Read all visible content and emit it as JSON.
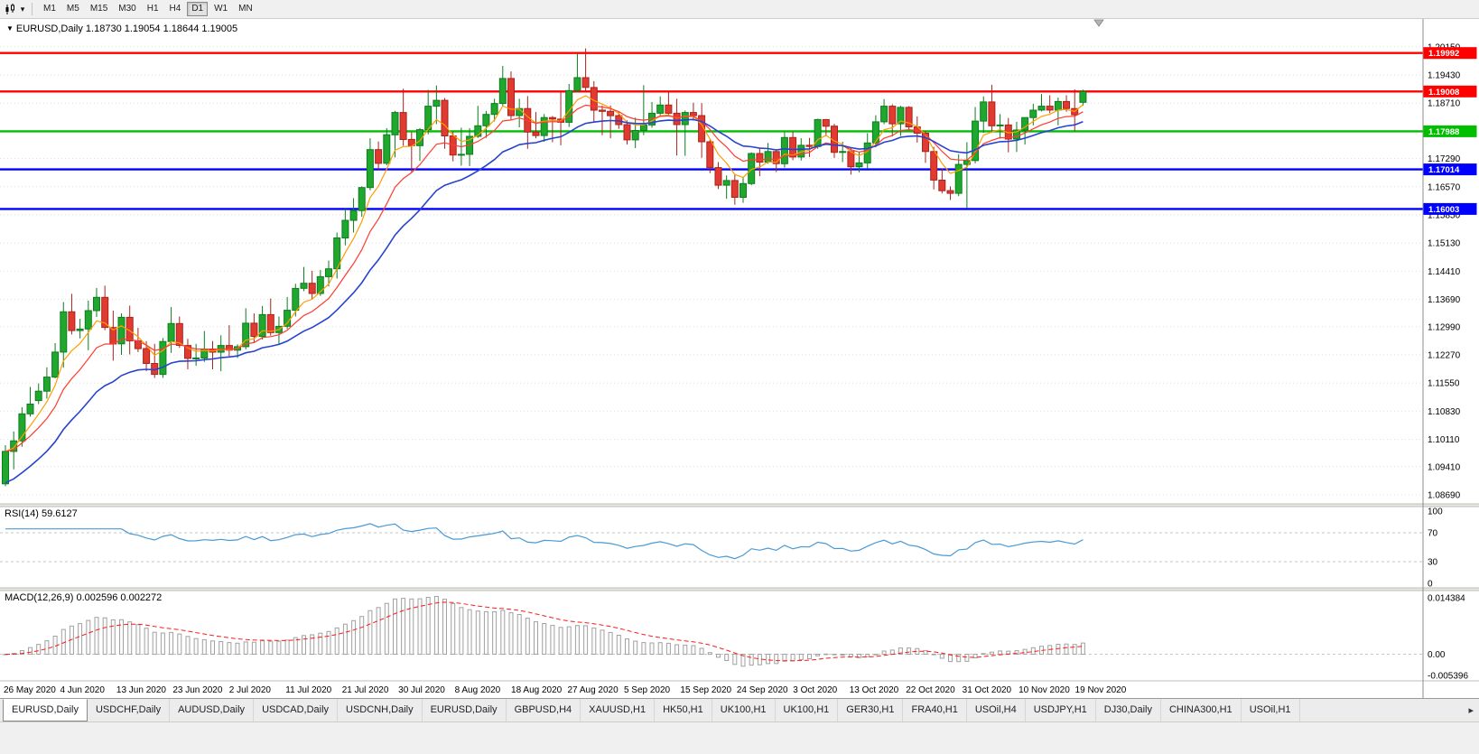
{
  "colors": {
    "bull": "#1fa72e",
    "bull_stroke": "#0d7d1e",
    "bear": "#e03a31",
    "bear_stroke": "#a8231d",
    "ma_fast": "#ff9d00",
    "ma_mid": "#ff3b30",
    "ma_slow": "#2743d0",
    "rsi_line": "#4a9ad4",
    "macd_signal": "#ff1a1a",
    "hist_stroke": "#a2a2a2",
    "hist_fill": "#fbfbfb",
    "grid": "#dcdcdc",
    "axis_line": "#8c8c8c"
  },
  "toolbar": {
    "chart_icon_name": "candlestick-chart-icon",
    "dropdown_glyph": "▾",
    "timeframes": [
      "M1",
      "M5",
      "M15",
      "M30",
      "H1",
      "H4",
      "D1",
      "W1",
      "MN"
    ],
    "active_timeframe": "D1"
  },
  "main_chart": {
    "direction_marker": "▼",
    "title": "EURUSD,Daily 1.18730 1.19054 1.18644 1.19005"
  },
  "rsi_panel": {
    "label": "RSI(14) 59.6127"
  },
  "macd_panel": {
    "label": "MACD(12,26,9) 0.002596 0.002272"
  },
  "chart_data": {
    "type": "candlestick",
    "symbol": "EURUSD",
    "period": "Daily",
    "ohlc_current": {
      "open": "1.18730",
      "high": "1.19054",
      "low": "1.18644",
      "close": "1.19005"
    },
    "x_tick_labels": [
      "26 May 2020",
      "4 Jun 2020",
      "13 Jun 2020",
      "23 Jun 2020",
      "2 Jul 2020",
      "11 Jul 2020",
      "21 Jul 2020",
      "30 Jul 2020",
      "8 Aug 2020",
      "18 Aug 2020",
      "27 Aug 2020",
      "5 Sep 2020",
      "15 Sep 2020",
      "24 Sep 2020",
      "3 Oct 2020",
      "13 Oct 2020",
      "22 Oct 2020",
      "31 Oct 2020",
      "10 Nov 2020",
      "19 Nov 2020"
    ],
    "y_tick_labels": [
      "1.20150",
      "1.19430",
      "1.18710",
      "1.17990",
      "1.17290",
      "1.16570",
      "1.15850",
      "1.15130",
      "1.14410",
      "1.13690",
      "1.12990",
      "1.12270",
      "1.11550",
      "1.10830",
      "1.10110",
      "1.09410",
      "1.08690"
    ],
    "horizontal_lines": [
      {
        "price": 1.19992,
        "label": "1.19992",
        "color": "#FF0000"
      },
      {
        "price": 1.19008,
        "label": "1.19008",
        "color": "#FF0000"
      },
      {
        "price": 1.17988,
        "label": "1.17988",
        "color": "#00BE00"
      },
      {
        "price": 1.17014,
        "label": "1.17014",
        "color": "#0000FF"
      },
      {
        "price": 1.16003,
        "label": "1.16003",
        "color": "#0000FF"
      }
    ],
    "indicators": {
      "moving_averages": [
        {
          "type": "ema",
          "period": 5,
          "color_key": "ma_fast"
        },
        {
          "type": "ema",
          "period": 10,
          "color_key": "ma_mid"
        },
        {
          "type": "ema",
          "period": 20,
          "color_key": "ma_slow"
        }
      ],
      "rsi": {
        "period": 14,
        "value_display": "59.6127",
        "axis_labels": [
          "100",
          "70",
          "30",
          "0"
        ],
        "dashed_levels": [
          70,
          30
        ]
      },
      "macd": {
        "fast": 12,
        "slow": 26,
        "signal": 9,
        "values_display": "0.002596 0.002272",
        "axis_labels": [
          "0.014384",
          "0.00",
          "-0.005396"
        ],
        "axis_top_value": 0.014384,
        "axis_bottom_value": -0.005396
      }
    },
    "candles": [
      [
        1.0897,
        1.0996,
        1.0891,
        1.098
      ],
      [
        1.098,
        1.1031,
        1.0934,
        1.1007
      ],
      [
        1.1007,
        1.1093,
        1.0992,
        1.1076
      ],
      [
        1.1076,
        1.1145,
        1.1069,
        1.1101
      ],
      [
        1.111,
        1.1154,
        1.1101,
        1.1134
      ],
      [
        1.1134,
        1.1195,
        1.1115,
        1.117
      ],
      [
        1.117,
        1.1257,
        1.1167,
        1.1234
      ],
      [
        1.1234,
        1.1362,
        1.1194,
        1.1337
      ],
      [
        1.1337,
        1.1383,
        1.1279,
        1.1289
      ],
      [
        1.1289,
        1.1319,
        1.1269,
        1.1293
      ],
      [
        1.1293,
        1.1366,
        1.1239,
        1.134
      ],
      [
        1.134,
        1.1398,
        1.1324,
        1.1374
      ],
      [
        1.1374,
        1.1404,
        1.129,
        1.1297
      ],
      [
        1.1297,
        1.134,
        1.1212,
        1.1255
      ],
      [
        1.1255,
        1.1333,
        1.1227,
        1.1323
      ],
      [
        1.1323,
        1.1353,
        1.1228,
        1.1263
      ],
      [
        1.1263,
        1.1296,
        1.1234,
        1.1243
      ],
      [
        1.1243,
        1.1262,
        1.1185,
        1.1205
      ],
      [
        1.1205,
        1.1255,
        1.1168,
        1.1177
      ],
      [
        1.1177,
        1.127,
        1.1168,
        1.1261
      ],
      [
        1.1261,
        1.1349,
        1.1232,
        1.1307
      ],
      [
        1.1307,
        1.1325,
        1.1245,
        1.1251
      ],
      [
        1.1251,
        1.1268,
        1.119,
        1.1218
      ],
      [
        1.1218,
        1.1255,
        1.1199,
        1.1219
      ],
      [
        1.1219,
        1.1288,
        1.1209,
        1.1242
      ],
      [
        1.1242,
        1.1262,
        1.119,
        1.1234
      ],
      [
        1.1234,
        1.1277,
        1.1185,
        1.1251
      ],
      [
        1.1251,
        1.1303,
        1.1223,
        1.1239
      ],
      [
        1.1239,
        1.1254,
        1.1219,
        1.1248
      ],
      [
        1.1248,
        1.1346,
        1.1241,
        1.1308
      ],
      [
        1.1308,
        1.1333,
        1.1259,
        1.1274
      ],
      [
        1.1274,
        1.1352,
        1.1266,
        1.133
      ],
      [
        1.133,
        1.1371,
        1.1276,
        1.1284
      ],
      [
        1.1284,
        1.1325,
        1.1254,
        1.13
      ],
      [
        1.13,
        1.1375,
        1.1293,
        1.1341
      ],
      [
        1.1341,
        1.1409,
        1.1325,
        1.1397
      ],
      [
        1.1397,
        1.1452,
        1.139,
        1.141
      ],
      [
        1.141,
        1.1442,
        1.137,
        1.1384
      ],
      [
        1.1384,
        1.1444,
        1.1378,
        1.1427
      ],
      [
        1.1427,
        1.1468,
        1.1402,
        1.1447
      ],
      [
        1.1447,
        1.154,
        1.1422,
        1.1526
      ],
      [
        1.1526,
        1.1601,
        1.1507,
        1.1571
      ],
      [
        1.1571,
        1.1628,
        1.154,
        1.1596
      ],
      [
        1.1596,
        1.1658,
        1.158,
        1.1655
      ],
      [
        1.1655,
        1.1781,
        1.1648,
        1.1752
      ],
      [
        1.1752,
        1.1773,
        1.1701,
        1.1717
      ],
      [
        1.1717,
        1.1807,
        1.1712,
        1.179
      ],
      [
        1.179,
        1.1851,
        1.1732,
        1.1847
      ],
      [
        1.1847,
        1.1908,
        1.1762,
        1.1778
      ],
      [
        1.1778,
        1.1797,
        1.1695,
        1.1762
      ],
      [
        1.1762,
        1.1807,
        1.1723,
        1.1803
      ],
      [
        1.1803,
        1.1905,
        1.1791,
        1.1863
      ],
      [
        1.1863,
        1.1916,
        1.1817,
        1.1878
      ],
      [
        1.1878,
        1.1884,
        1.1754,
        1.1787
      ],
      [
        1.1787,
        1.1798,
        1.1722,
        1.1738
      ],
      [
        1.1738,
        1.1808,
        1.1711,
        1.174
      ],
      [
        1.174,
        1.1807,
        1.171,
        1.1786
      ],
      [
        1.1786,
        1.1864,
        1.1782,
        1.1813
      ],
      [
        1.1813,
        1.1851,
        1.1782,
        1.1842
      ],
      [
        1.1842,
        1.1882,
        1.1824,
        1.187
      ],
      [
        1.187,
        1.1966,
        1.1864,
        1.1934
      ],
      [
        1.1934,
        1.1952,
        1.1829,
        1.1839
      ],
      [
        1.1839,
        1.1882,
        1.1809,
        1.1857
      ],
      [
        1.1857,
        1.1889,
        1.1754,
        1.1797
      ],
      [
        1.1797,
        1.1848,
        1.1781,
        1.1788
      ],
      [
        1.1788,
        1.1843,
        1.1772,
        1.1834
      ],
      [
        1.1834,
        1.1838,
        1.1771,
        1.183
      ],
      [
        1.183,
        1.1901,
        1.1763,
        1.1822
      ],
      [
        1.1822,
        1.192,
        1.181,
        1.1903
      ],
      [
        1.1903,
        1.1997,
        1.1898,
        1.1936
      ],
      [
        1.1936,
        1.2011,
        1.1901,
        1.1911
      ],
      [
        1.1911,
        1.1927,
        1.1822,
        1.1853
      ],
      [
        1.1853,
        1.1865,
        1.1789,
        1.185
      ],
      [
        1.185,
        1.1865,
        1.1781,
        1.1839
      ],
      [
        1.1839,
        1.1849,
        1.1805,
        1.1816
      ],
      [
        1.1816,
        1.1827,
        1.1765,
        1.1777
      ],
      [
        1.1777,
        1.1834,
        1.1756,
        1.1801
      ],
      [
        1.1801,
        1.1917,
        1.1789,
        1.1815
      ],
      [
        1.1815,
        1.1874,
        1.1808,
        1.1845
      ],
      [
        1.1845,
        1.1888,
        1.1838,
        1.1866
      ],
      [
        1.1866,
        1.1901,
        1.1838,
        1.1845
      ],
      [
        1.1845,
        1.1882,
        1.1737,
        1.1816
      ],
      [
        1.1816,
        1.1852,
        1.1736,
        1.1847
      ],
      [
        1.1847,
        1.1872,
        1.1826,
        1.1839
      ],
      [
        1.1839,
        1.1871,
        1.1731,
        1.1772
      ],
      [
        1.1772,
        1.1778,
        1.1692,
        1.1706
      ],
      [
        1.1706,
        1.172,
        1.1651,
        1.1661
      ],
      [
        1.1661,
        1.1686,
        1.1626,
        1.1673
      ],
      [
        1.1673,
        1.1688,
        1.1611,
        1.163
      ],
      [
        1.163,
        1.1683,
        1.1616,
        1.1665
      ],
      [
        1.1665,
        1.1745,
        1.1661,
        1.1742
      ],
      [
        1.1742,
        1.1755,
        1.1684,
        1.172
      ],
      [
        1.172,
        1.1769,
        1.1716,
        1.1747
      ],
      [
        1.1747,
        1.1751,
        1.1695,
        1.1716
      ],
      [
        1.1716,
        1.1797,
        1.1706,
        1.1783
      ],
      [
        1.1783,
        1.1798,
        1.1725,
        1.1733
      ],
      [
        1.1733,
        1.1781,
        1.1724,
        1.1763
      ],
      [
        1.1763,
        1.1782,
        1.1733,
        1.176
      ],
      [
        1.176,
        1.1831,
        1.1754,
        1.1829
      ],
      [
        1.1829,
        1.183,
        1.1786,
        1.1812
      ],
      [
        1.1812,
        1.1818,
        1.1731,
        1.1745
      ],
      [
        1.1745,
        1.1772,
        1.172,
        1.1747
      ],
      [
        1.1747,
        1.1758,
        1.1688,
        1.1708
      ],
      [
        1.1708,
        1.1747,
        1.1694,
        1.1718
      ],
      [
        1.1718,
        1.1794,
        1.1703,
        1.1769
      ],
      [
        1.1769,
        1.184,
        1.1758,
        1.1823
      ],
      [
        1.1823,
        1.1881,
        1.1817,
        1.1863
      ],
      [
        1.1863,
        1.1868,
        1.1786,
        1.1818
      ],
      [
        1.1818,
        1.1864,
        1.1787,
        1.186
      ],
      [
        1.186,
        1.1863,
        1.18,
        1.181
      ],
      [
        1.181,
        1.1837,
        1.177,
        1.1794
      ],
      [
        1.1794,
        1.18,
        1.1718,
        1.1747
      ],
      [
        1.1747,
        1.1759,
        1.165,
        1.1674
      ],
      [
        1.1674,
        1.1704,
        1.164,
        1.1647
      ],
      [
        1.1647,
        1.1658,
        1.1623,
        1.164
      ],
      [
        1.164,
        1.174,
        1.1633,
        1.1714
      ],
      [
        1.1714,
        1.1771,
        1.1603,
        1.1724
      ],
      [
        1.1724,
        1.1861,
        1.1717,
        1.1825
      ],
      [
        1.1825,
        1.1888,
        1.1795,
        1.1874
      ],
      [
        1.1874,
        1.1918,
        1.1795,
        1.1813
      ],
      [
        1.1813,
        1.1843,
        1.178,
        1.1815
      ],
      [
        1.1815,
        1.1833,
        1.1745,
        1.1779
      ],
      [
        1.1779,
        1.1823,
        1.1746,
        1.1802
      ],
      [
        1.1802,
        1.1834,
        1.1765,
        1.1834
      ],
      [
        1.1834,
        1.1869,
        1.1814,
        1.1853
      ],
      [
        1.1853,
        1.1894,
        1.185,
        1.1863
      ],
      [
        1.1863,
        1.1891,
        1.1845,
        1.1853
      ],
      [
        1.1853,
        1.1885,
        1.1814,
        1.1875
      ],
      [
        1.1875,
        1.1891,
        1.1849,
        1.1857
      ],
      [
        1.1857,
        1.1906,
        1.1799,
        1.1841
      ],
      [
        1.1873,
        1.19054,
        1.18644,
        1.19005
      ]
    ]
  },
  "tabs": {
    "scroll_right_icon": "▸",
    "items": [
      {
        "label": "EURUSD,Daily",
        "active": true
      },
      {
        "label": "USDCHF,Daily",
        "active": false
      },
      {
        "label": "AUDUSD,Daily",
        "active": false
      },
      {
        "label": "USDCAD,Daily",
        "active": false
      },
      {
        "label": "USDCNH,Daily",
        "active": false
      },
      {
        "label": "EURUSD,Daily",
        "active": false
      },
      {
        "label": "GBPUSD,H4",
        "active": false
      },
      {
        "label": "XAUUSD,H1",
        "active": false
      },
      {
        "label": "HK50,H1",
        "active": false
      },
      {
        "label": "UK100,H1",
        "active": false
      },
      {
        "label": "UK100,H1",
        "active": false
      },
      {
        "label": "GER30,H1",
        "active": false
      },
      {
        "label": "FRA40,H1",
        "active": false
      },
      {
        "label": "USOil,H4",
        "active": false
      },
      {
        "label": "USDJPY,H1",
        "active": false
      },
      {
        "label": "DJ30,Daily",
        "active": false
      },
      {
        "label": "CHINA300,H1",
        "active": false
      },
      {
        "label": "USOil,H1",
        "active": false
      }
    ]
  }
}
